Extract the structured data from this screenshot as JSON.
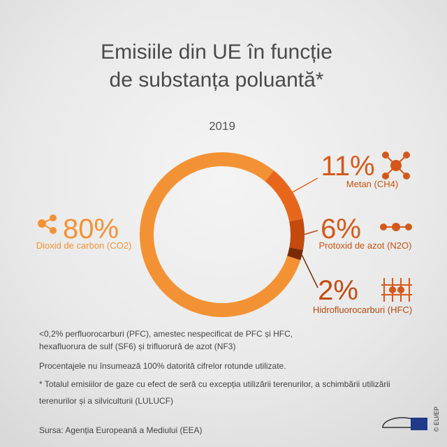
{
  "chart_data": {
    "type": "pie",
    "donut": true,
    "title": [
      "Emisiile din UE în funcție",
      "de substanța poluantă*"
    ],
    "subtitle": "2019",
    "categories": [
      "Dioxid de carbon (CO2)",
      "Metan (CH4)",
      "Protoxid de azot (N2O)",
      "Hidrofluorocarburi (HFC)"
    ],
    "values": [
      80,
      11,
      6,
      2
    ],
    "value_labels": [
      "80%",
      "11%",
      "6%",
      "2%"
    ],
    "colors": [
      "#f39234",
      "#e8661c",
      "#c44a0e",
      "#7a2a06"
    ],
    "notes": [
      "<0,2% perfluorocarburi (PFC), amestec nespecificat de PFC și HFC,",
      "hexafluorura de sulf (SF6) și trifluorură de azot (NF3)",
      "Procentajele nu însumează 100% datorită cifrelor rotunde utilizate.",
      "* Totalul emisiilor de gaze cu efect de seră cu excepția utilizării terenurilor, a schimbării utilizării",
      "terenurilor și a silviculturii (LULUCF)"
    ],
    "source": "Sursa: Agenția Europeană a Mediului (EEA)",
    "credit": "© EU/EP"
  }
}
